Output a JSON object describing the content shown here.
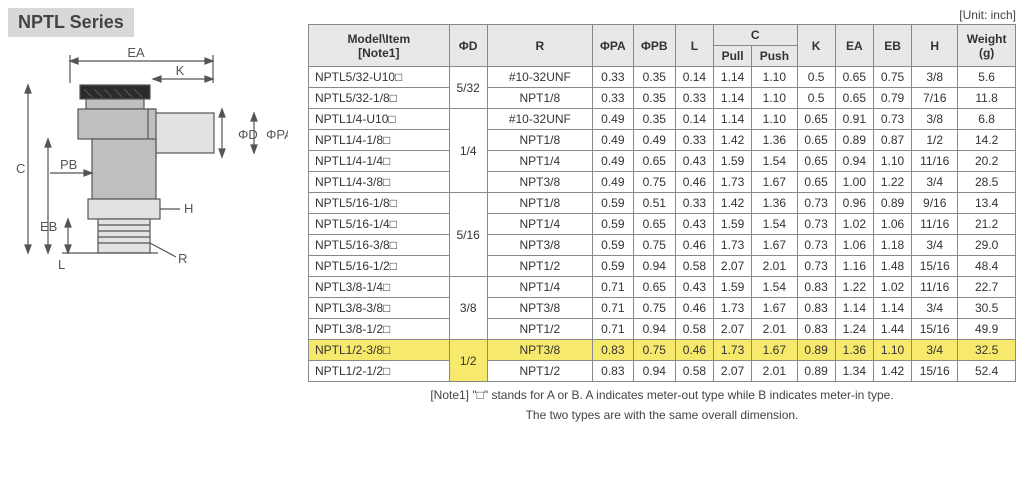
{
  "series_title": "NPTL Series",
  "unit_label": "[Unit: inch]",
  "diagram": {
    "labels": {
      "EA": "EA",
      "K": "K",
      "PA": "ΦPA",
      "D": "ΦD",
      "PB": "PB",
      "C": "C",
      "EB": "EB",
      "L": "L",
      "H": "H",
      "R": "R"
    },
    "stroke": "#555",
    "fill_body": "#bfbfbf",
    "fill_light": "#e2e2e2"
  },
  "table": {
    "header": {
      "model": "Model\\Item\n[Note1]",
      "phiD": "ΦD",
      "R": "R",
      "phiPA": "ΦPA",
      "phiPB": "ΦPB",
      "L": "L",
      "C": "C",
      "Cpull": "Pull",
      "Cpush": "Push",
      "K": "K",
      "EA": "EA",
      "EB": "EB",
      "H": "H",
      "Weight": "Weight\n(g)"
    },
    "groups": [
      {
        "phiD": "5/32",
        "rows": [
          {
            "model": "NPTL5/32-U10□",
            "R": "#10-32UNF",
            "PA": "0.33",
            "PB": "0.35",
            "L": "0.14",
            "Cpull": "1.14",
            "Cpush": "1.10",
            "K": "0.5",
            "EA": "0.65",
            "EB": "0.75",
            "H": "3/8",
            "W": "5.6"
          },
          {
            "model": "NPTL5/32-1/8□",
            "R": "NPT1/8",
            "PA": "0.33",
            "PB": "0.35",
            "L": "0.33",
            "Cpull": "1.14",
            "Cpush": "1.10",
            "K": "0.5",
            "EA": "0.65",
            "EB": "0.79",
            "H": "7/16",
            "W": "11.8"
          }
        ]
      },
      {
        "phiD": "1/4",
        "rows": [
          {
            "model": "NPTL1/4-U10□",
            "R": "#10-32UNF",
            "PA": "0.49",
            "PB": "0.35",
            "L": "0.14",
            "Cpull": "1.14",
            "Cpush": "1.10",
            "K": "0.65",
            "EA": "0.91",
            "EB": "0.73",
            "H": "3/8",
            "W": "6.8"
          },
          {
            "model": "NPTL1/4-1/8□",
            "R": "NPT1/8",
            "PA": "0.49",
            "PB": "0.49",
            "L": "0.33",
            "Cpull": "1.42",
            "Cpush": "1.36",
            "K": "0.65",
            "EA": "0.89",
            "EB": "0.87",
            "H": "1/2",
            "W": "14.2"
          },
          {
            "model": "NPTL1/4-1/4□",
            "R": "NPT1/4",
            "PA": "0.49",
            "PB": "0.65",
            "L": "0.43",
            "Cpull": "1.59",
            "Cpush": "1.54",
            "K": "0.65",
            "EA": "0.94",
            "EB": "1.10",
            "H": "11/16",
            "W": "20.2"
          },
          {
            "model": "NPTL1/4-3/8□",
            "R": "NPT3/8",
            "PA": "0.49",
            "PB": "0.75",
            "L": "0.46",
            "Cpull": "1.73",
            "Cpush": "1.67",
            "K": "0.65",
            "EA": "1.00",
            "EB": "1.22",
            "H": "3/4",
            "W": "28.5"
          }
        ]
      },
      {
        "phiD": "5/16",
        "rows": [
          {
            "model": "NPTL5/16-1/8□",
            "R": "NPT1/8",
            "PA": "0.59",
            "PB": "0.51",
            "L": "0.33",
            "Cpull": "1.42",
            "Cpush": "1.36",
            "K": "0.73",
            "EA": "0.96",
            "EB": "0.89",
            "H": "9/16",
            "W": "13.4"
          },
          {
            "model": "NPTL5/16-1/4□",
            "R": "NPT1/4",
            "PA": "0.59",
            "PB": "0.65",
            "L": "0.43",
            "Cpull": "1.59",
            "Cpush": "1.54",
            "K": "0.73",
            "EA": "1.02",
            "EB": "1.06",
            "H": "11/16",
            "W": "21.2"
          },
          {
            "model": "NPTL5/16-3/8□",
            "R": "NPT3/8",
            "PA": "0.59",
            "PB": "0.75",
            "L": "0.46",
            "Cpull": "1.73",
            "Cpush": "1.67",
            "K": "0.73",
            "EA": "1.06",
            "EB": "1.18",
            "H": "3/4",
            "W": "29.0"
          },
          {
            "model": "NPTL5/16-1/2□",
            "R": "NPT1/2",
            "PA": "0.59",
            "PB": "0.94",
            "L": "0.58",
            "Cpull": "2.07",
            "Cpush": "2.01",
            "K": "0.73",
            "EA": "1.16",
            "EB": "1.48",
            "H": "15/16",
            "W": "48.4"
          }
        ]
      },
      {
        "phiD": "3/8",
        "rows": [
          {
            "model": "NPTL3/8-1/4□",
            "R": "NPT1/4",
            "PA": "0.71",
            "PB": "0.65",
            "L": "0.43",
            "Cpull": "1.59",
            "Cpush": "1.54",
            "K": "0.83",
            "EA": "1.22",
            "EB": "1.02",
            "H": "11/16",
            "W": "22.7"
          },
          {
            "model": "NPTL3/8-3/8□",
            "R": "NPT3/8",
            "PA": "0.71",
            "PB": "0.75",
            "L": "0.46",
            "Cpull": "1.73",
            "Cpush": "1.67",
            "K": "0.83",
            "EA": "1.14",
            "EB": "1.14",
            "H": "3/4",
            "W": "30.5"
          },
          {
            "model": "NPTL3/8-1/2□",
            "R": "NPT1/2",
            "PA": "0.71",
            "PB": "0.94",
            "L": "0.58",
            "Cpull": "2.07",
            "Cpush": "2.01",
            "K": "0.83",
            "EA": "1.24",
            "EB": "1.44",
            "H": "15/16",
            "W": "49.9"
          }
        ]
      },
      {
        "phiD": "1/2",
        "highlight_phiD": true,
        "rows": [
          {
            "model": "NPTL1/2-3/8□",
            "R": "NPT3/8",
            "PA": "0.83",
            "PB": "0.75",
            "L": "0.46",
            "Cpull": "1.73",
            "Cpush": "1.67",
            "K": "0.89",
            "EA": "1.36",
            "EB": "1.10",
            "H": "3/4",
            "W": "32.5",
            "highlight": true
          },
          {
            "model": "NPTL1/2-1/2□",
            "R": "NPT1/2",
            "PA": "0.83",
            "PB": "0.94",
            "L": "0.58",
            "Cpull": "2.07",
            "Cpush": "2.01",
            "K": "0.89",
            "EA": "1.34",
            "EB": "1.42",
            "H": "15/16",
            "W": "52.4"
          }
        ]
      }
    ]
  },
  "footnote1": "[Note1] \"□\" stands for A or B. A indicates meter-out type while B indicates meter-in type.",
  "footnote2": "The two types are with the same overall dimension."
}
